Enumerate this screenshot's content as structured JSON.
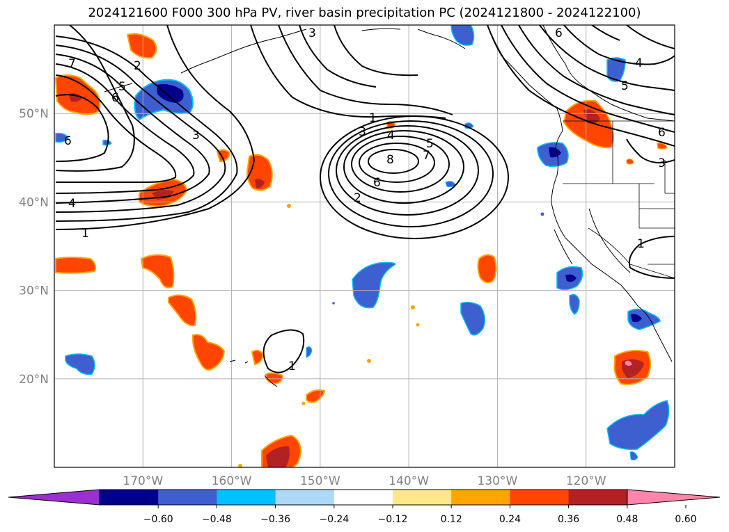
{
  "title": "2024121600 F000 300 hPa PV, river basin precipitation PC (2024121800 - 2024122100)",
  "map": {
    "lon_range": [
      -180,
      -110
    ],
    "lat_range": [
      10,
      60
    ],
    "longitude_ticks": [
      {
        "lon": -170,
        "label": "170°W"
      },
      {
        "lon": -160,
        "label": "160°W"
      },
      {
        "lon": -150,
        "label": "150°W"
      },
      {
        "lon": -140,
        "label": "140°W"
      },
      {
        "lon": -130,
        "label": "130°W"
      },
      {
        "lon": -120,
        "label": "120°W"
      }
    ],
    "latitude_ticks": [
      {
        "lat": 50,
        "label": "50°N"
      },
      {
        "lat": 40,
        "label": "40°N"
      },
      {
        "lat": 30,
        "label": "30°N"
      },
      {
        "lat": 20,
        "label": "20°N"
      }
    ],
    "gridlines": true,
    "contour_labels": [
      "1",
      "2",
      "3",
      "4",
      "5",
      "6",
      "7",
      "8"
    ]
  },
  "colorbar": {
    "labels": [
      "−0.60",
      "−0.48",
      "−0.36",
      "−0.24",
      "−0.12",
      "0.12",
      "0.24",
      "0.36",
      "0.48",
      "0.60"
    ],
    "colors": [
      "#9b30d0",
      "#00008b",
      "#3d5fd0",
      "#00bfff",
      "#add8f7",
      "#ffffff",
      "#ffe88a",
      "#ffa500",
      "#ff4500",
      "#b22222",
      "#ff85aa"
    ]
  }
}
